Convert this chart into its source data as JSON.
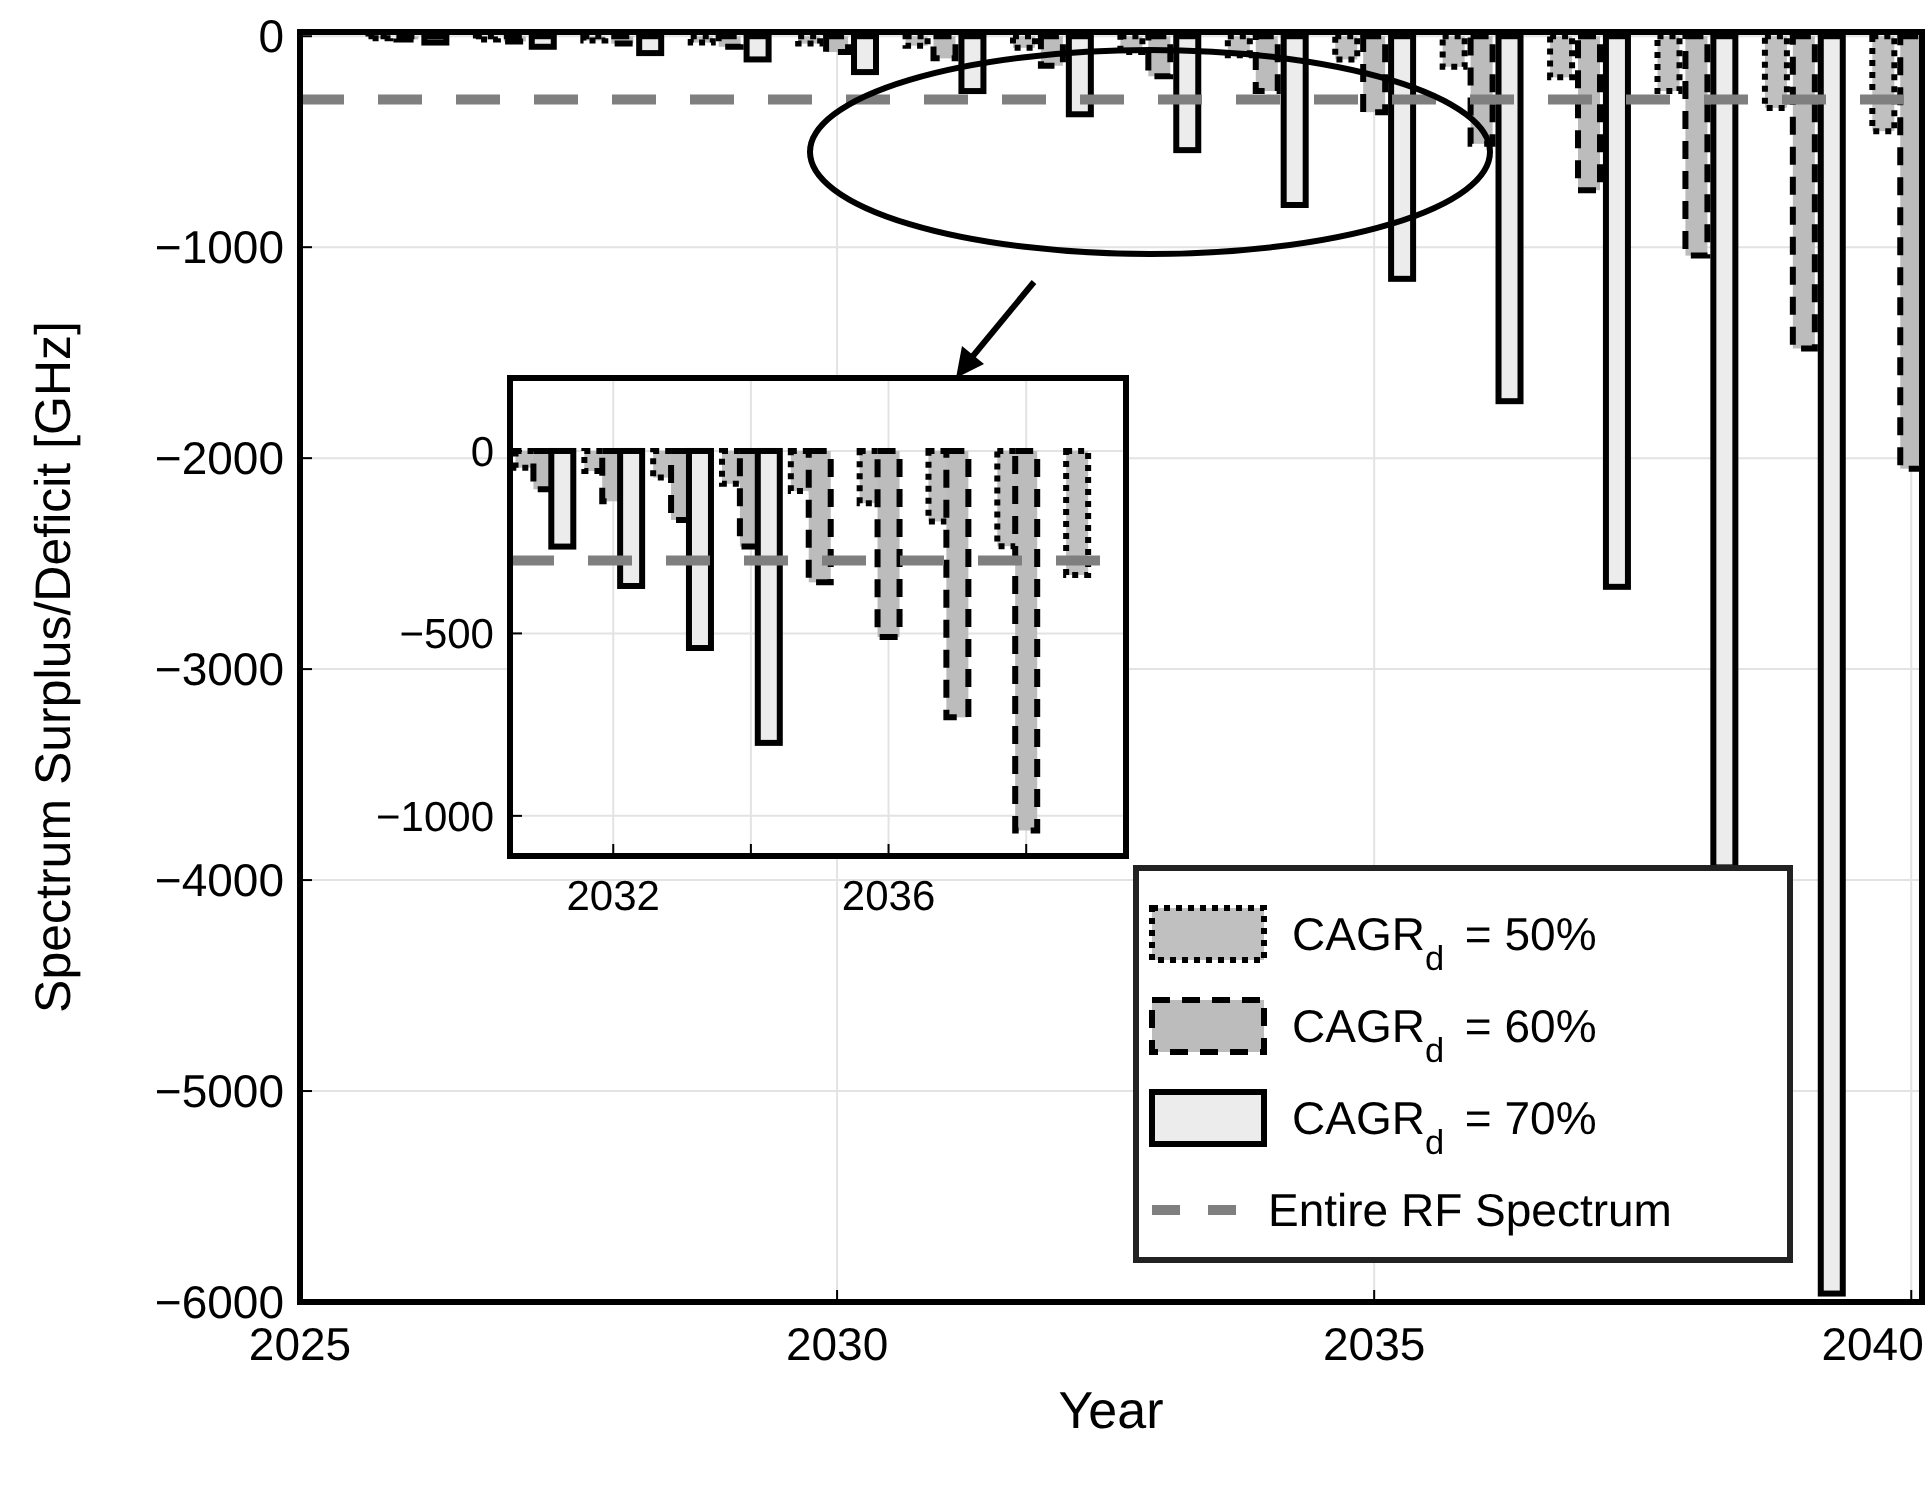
{
  "chart_data": [
    {
      "type": "bar",
      "xlabel": "Year",
      "ylabel": "Spectrum Surplus/Deficit [GHz]",
      "x": [
        2026,
        2027,
        2028,
        2029,
        2030,
        2031,
        2032,
        2033,
        2034,
        2035,
        2036,
        2037,
        2038,
        2039,
        2040
      ],
      "series": [
        {
          "name": "CAGR$_{d}$ = 50%",
          "color": "#c0c0c0",
          "line_style": "dotted",
          "values": [
            -10,
            -15,
            -20,
            -30,
            -35,
            -45,
            -55,
            -75,
            -90,
            -110,
            -145,
            -195,
            -260,
            -340,
            -450
          ]
        },
        {
          "name": "CAGR$_{d}$ = 60%",
          "color": "#bcbcbc",
          "line_style": "dashed",
          "values": [
            -15,
            -25,
            -35,
            -50,
            -75,
            -105,
            -140,
            -190,
            -260,
            -360,
            -510,
            -730,
            -1040,
            -1480,
            -2050
          ]
        },
        {
          "name": "CAGR$_{d}$ = 70%",
          "color": "#ececec",
          "line_style": "solid",
          "values": [
            -30,
            -50,
            -80,
            -110,
            -170,
            -260,
            -370,
            -540,
            -800,
            -1150,
            -1730,
            -2610,
            -3940,
            -5960,
            null
          ]
        }
      ],
      "xlim": [
        2025,
        2040.1
      ],
      "ylim": [
        -6000,
        20
      ],
      "xticks": [
        2025,
        2030,
        2035,
        2040
      ],
      "yticks": [
        {
          "value": 0,
          "label": "0"
        },
        {
          "value": -1000,
          "label": "−1000"
        },
        {
          "value": -2000,
          "label": "−2000"
        },
        {
          "value": -3000,
          "label": "−3000"
        },
        {
          "value": -4000,
          "label": "−4000"
        },
        {
          "value": -5000,
          "label": "−5000"
        },
        {
          "value": -6000,
          "label": "−6000"
        }
      ],
      "grid": true,
      "legend": "bottom right",
      "ref_lines": [
        {
          "axis": "y",
          "value": -300,
          "label": "Entire RF Spectrum",
          "color": "#7f7f7f",
          "line_style": "dashed"
        }
      ]
    },
    {
      "type": "bar",
      "x": [
        2031,
        2032,
        2033,
        2034,
        2035,
        2036,
        2037,
        2038,
        2039
      ],
      "series": [
        {
          "color": "#c0c0c0",
          "line_style": "dotted",
          "values": [
            -46,
            -55,
            -73,
            -90,
            -110,
            -143,
            -193,
            -261,
            -340
          ]
        },
        {
          "color": "#bcbcbc",
          "line_style": "dashed",
          "values": [
            -105,
            -138,
            -189,
            -262,
            -360,
            -510,
            -730,
            -1040,
            null
          ]
        },
        {
          "color": "#ececec",
          "line_style": "solid",
          "values": [
            -262,
            -370,
            -540,
            -800,
            null,
            null,
            null,
            null,
            null
          ]
        }
      ],
      "xlim": [
        2030.5,
        2039.45
      ],
      "ylim": [
        -1110,
        200
      ],
      "xticks": [
        2032,
        {
          "value": 2034,
          "label": null
        },
        2036,
        {
          "value": 2038,
          "label": null
        }
      ],
      "yticks": [
        {
          "value": 0,
          "label": "0"
        },
        {
          "value": -500,
          "label": "−500"
        },
        {
          "value": -1000,
          "label": "−1000"
        }
      ],
      "grid": true,
      "ref_lines": [
        {
          "axis": "y",
          "value": -300,
          "color": "#7f7f7f",
          "line_style": "dashed"
        }
      ]
    }
  ]
}
